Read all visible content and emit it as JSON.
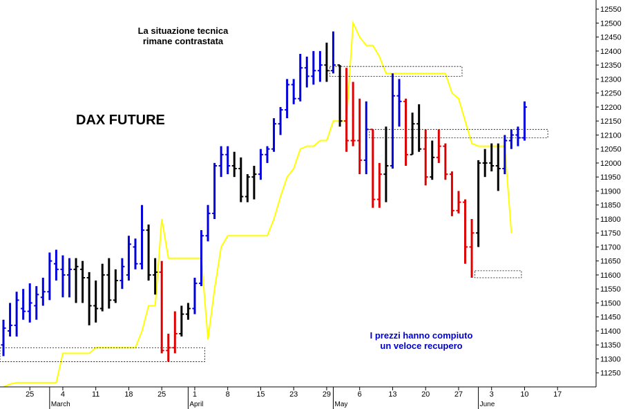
{
  "chart_data": {
    "type": "ohlc",
    "title": "DAX FUTURE",
    "annotations": [
      "La situazione tecnica\nrimane contrastata",
      "I prezzi hanno compiuto\nun veloce recupero"
    ],
    "ylim": [
      11200,
      12575
    ],
    "y_ticks": [
      11250,
      11300,
      11350,
      11400,
      11450,
      11500,
      11550,
      11600,
      11650,
      11700,
      11750,
      11800,
      11850,
      11900,
      11950,
      12000,
      12050,
      12100,
      12150,
      12200,
      12250,
      12300,
      12350,
      12400,
      12450,
      12500,
      12550
    ],
    "x_day_ticks": [
      "25",
      "4",
      "11",
      "18",
      "25",
      "1",
      "8",
      "15",
      "23",
      "29",
      "6",
      "13",
      "20",
      "27",
      "3",
      "10",
      "17"
    ],
    "x_month_labels": [
      "March",
      "April",
      "May",
      "June"
    ],
    "grid": false,
    "colors": {
      "up": "#0000dd",
      "down": "#dd0000",
      "neutral": "#000000",
      "line": "#ffff00",
      "box": "#000000"
    },
    "bars": [
      {
        "o": 11350,
        "h": 11440,
        "l": 11310,
        "c": 11410,
        "color": "blue"
      },
      {
        "o": 11400,
        "h": 11500,
        "l": 11380,
        "c": 11420,
        "color": "blue"
      },
      {
        "o": 11420,
        "h": 11540,
        "l": 11380,
        "c": 11510,
        "color": "blue"
      },
      {
        "o": 11480,
        "h": 11550,
        "l": 11440,
        "c": 11470,
        "color": "blue"
      },
      {
        "o": 11470,
        "h": 11570,
        "l": 11430,
        "c": 11500,
        "color": "blue"
      },
      {
        "o": 11490,
        "h": 11560,
        "l": 11440,
        "c": 11530,
        "color": "blue"
      },
      {
        "o": 11520,
        "h": 11590,
        "l": 11490,
        "c": 11540,
        "color": "blue"
      },
      {
        "o": 11540,
        "h": 11680,
        "l": 11510,
        "c": 11650,
        "color": "blue"
      },
      {
        "o": 11640,
        "h": 11690,
        "l": 11580,
        "c": 11620,
        "color": "blue"
      },
      {
        "o": 11620,
        "h": 11670,
        "l": 11520,
        "c": 11600,
        "color": "blue"
      },
      {
        "o": 11600,
        "h": 11660,
        "l": 11520,
        "c": 11620,
        "color": "blue"
      },
      {
        "o": 11620,
        "h": 11660,
        "l": 11500,
        "c": 11630,
        "color": "black"
      },
      {
        "o": 11620,
        "h": 11650,
        "l": 11500,
        "c": 11590,
        "color": "black"
      },
      {
        "o": 11590,
        "h": 11610,
        "l": 11420,
        "c": 11490,
        "color": "black"
      },
      {
        "o": 11490,
        "h": 11580,
        "l": 11430,
        "c": 11480,
        "color": "black"
      },
      {
        "o": 11480,
        "h": 11640,
        "l": 11470,
        "c": 11600,
        "color": "black"
      },
      {
        "o": 11600,
        "h": 11660,
        "l": 11480,
        "c": 11510,
        "color": "black"
      },
      {
        "o": 11510,
        "h": 11620,
        "l": 11500,
        "c": 11580,
        "color": "black"
      },
      {
        "o": 11580,
        "h": 11660,
        "l": 11550,
        "c": 11630,
        "color": "blue"
      },
      {
        "o": 11600,
        "h": 11740,
        "l": 11580,
        "c": 11710,
        "color": "blue"
      },
      {
        "o": 11700,
        "h": 11730,
        "l": 11620,
        "c": 11640,
        "color": "blue"
      },
      {
        "o": 11640,
        "h": 11850,
        "l": 11620,
        "c": 11760,
        "color": "blue"
      },
      {
        "o": 11760,
        "h": 11780,
        "l": 11580,
        "c": 11600,
        "color": "black"
      },
      {
        "o": 11600,
        "h": 11660,
        "l": 11530,
        "c": 11610,
        "color": "black"
      },
      {
        "o": 11610,
        "h": 11650,
        "l": 11320,
        "c": 11330,
        "color": "red"
      },
      {
        "o": 11330,
        "h": 11390,
        "l": 11290,
        "c": 11340,
        "color": "red"
      },
      {
        "o": 11340,
        "h": 11470,
        "l": 11320,
        "c": 11390,
        "color": "red"
      },
      {
        "o": 11390,
        "h": 11490,
        "l": 11380,
        "c": 11460,
        "color": "black"
      },
      {
        "o": 11460,
        "h": 11500,
        "l": 11440,
        "c": 11480,
        "color": "black"
      },
      {
        "o": 11480,
        "h": 11590,
        "l": 11460,
        "c": 11570,
        "color": "blue"
      },
      {
        "o": 11570,
        "h": 11760,
        "l": 11560,
        "c": 11740,
        "color": "blue"
      },
      {
        "o": 11740,
        "h": 11850,
        "l": 11720,
        "c": 11820,
        "color": "blue"
      },
      {
        "o": 11820,
        "h": 12000,
        "l": 11800,
        "c": 11990,
        "color": "blue"
      },
      {
        "o": 11990,
        "h": 12060,
        "l": 11950,
        "c": 12030,
        "color": "blue"
      },
      {
        "o": 12030,
        "h": 12060,
        "l": 11960,
        "c": 11990,
        "color": "blue"
      },
      {
        "o": 11990,
        "h": 12040,
        "l": 11950,
        "c": 11980,
        "color": "black"
      },
      {
        "o": 11980,
        "h": 12020,
        "l": 11860,
        "c": 11880,
        "color": "black"
      },
      {
        "o": 11880,
        "h": 11960,
        "l": 11860,
        "c": 11950,
        "color": "black"
      },
      {
        "o": 11950,
        "h": 11990,
        "l": 11870,
        "c": 11960,
        "color": "black"
      },
      {
        "o": 11960,
        "h": 12050,
        "l": 11940,
        "c": 12030,
        "color": "blue"
      },
      {
        "o": 12030,
        "h": 12060,
        "l": 12000,
        "c": 12050,
        "color": "blue"
      },
      {
        "o": 12050,
        "h": 12160,
        "l": 12040,
        "c": 12140,
        "color": "blue"
      },
      {
        "o": 12140,
        "h": 12200,
        "l": 12100,
        "c": 12190,
        "color": "blue"
      },
      {
        "o": 12190,
        "h": 12300,
        "l": 12160,
        "c": 12280,
        "color": "blue"
      },
      {
        "o": 12280,
        "h": 12300,
        "l": 12210,
        "c": 12230,
        "color": "blue"
      },
      {
        "o": 12230,
        "h": 12390,
        "l": 12220,
        "c": 12340,
        "color": "blue"
      },
      {
        "o": 12340,
        "h": 12380,
        "l": 12270,
        "c": 12310,
        "color": "blue"
      },
      {
        "o": 12310,
        "h": 12400,
        "l": 12280,
        "c": 12330,
        "color": "blue"
      },
      {
        "o": 12330,
        "h": 12400,
        "l": 12290,
        "c": 12350,
        "color": "blue"
      },
      {
        "o": 12350,
        "h": 12430,
        "l": 12290,
        "c": 12330,
        "color": "black"
      },
      {
        "o": 12330,
        "h": 12470,
        "l": 12320,
        "c": 12350,
        "color": "blue"
      },
      {
        "o": 12350,
        "h": 12350,
        "l": 12130,
        "c": 12150,
        "color": "black"
      },
      {
        "o": 12150,
        "h": 12340,
        "l": 12040,
        "c": 12080,
        "color": "red"
      },
      {
        "o": 12080,
        "h": 12290,
        "l": 12060,
        "c": 12080,
        "color": "red"
      },
      {
        "o": 12080,
        "h": 12230,
        "l": 11960,
        "c": 12010,
        "color": "red"
      },
      {
        "o": 12010,
        "h": 12220,
        "l": 11960,
        "c": 12120,
        "color": "blue"
      },
      {
        "o": 12120,
        "h": 12120,
        "l": 11840,
        "c": 11870,
        "color": "red"
      },
      {
        "o": 11870,
        "h": 12000,
        "l": 11840,
        "c": 11960,
        "color": "red"
      },
      {
        "o": 11960,
        "h": 12130,
        "l": 11860,
        "c": 11990,
        "color": "black"
      },
      {
        "o": 11990,
        "h": 12320,
        "l": 11980,
        "c": 12240,
        "color": "blue"
      },
      {
        "o": 12240,
        "h": 12300,
        "l": 12130,
        "c": 12220,
        "color": "blue"
      },
      {
        "o": 12220,
        "h": 12230,
        "l": 11990,
        "c": 12030,
        "color": "red"
      },
      {
        "o": 12030,
        "h": 12180,
        "l": 12030,
        "c": 12140,
        "color": "black"
      },
      {
        "o": 12140,
        "h": 12210,
        "l": 12040,
        "c": 12050,
        "color": "black"
      },
      {
        "o": 12050,
        "h": 12120,
        "l": 11920,
        "c": 11950,
        "color": "red"
      },
      {
        "o": 11950,
        "h": 12080,
        "l": 11940,
        "c": 12020,
        "color": "black"
      },
      {
        "o": 12020,
        "h": 12120,
        "l": 12000,
        "c": 12060,
        "color": "red"
      },
      {
        "o": 12060,
        "h": 12070,
        "l": 11940,
        "c": 11960,
        "color": "red"
      },
      {
        "o": 11960,
        "h": 11970,
        "l": 11810,
        "c": 11830,
        "color": "red"
      },
      {
        "o": 11830,
        "h": 11900,
        "l": 11820,
        "c": 11860,
        "color": "red"
      },
      {
        "o": 11860,
        "h": 11870,
        "l": 11640,
        "c": 11700,
        "color": "red"
      },
      {
        "o": 11700,
        "h": 11800,
        "l": 11590,
        "c": 11750,
        "color": "red"
      },
      {
        "o": 11750,
        "h": 12010,
        "l": 11700,
        "c": 12000,
        "color": "black"
      },
      {
        "o": 12000,
        "h": 12050,
        "l": 11950,
        "c": 12000,
        "color": "black"
      },
      {
        "o": 12000,
        "h": 12070,
        "l": 11970,
        "c": 11990,
        "color": "black"
      },
      {
        "o": 11990,
        "h": 12070,
        "l": 11900,
        "c": 11980,
        "color": "black"
      },
      {
        "o": 11980,
        "h": 12100,
        "l": 11960,
        "c": 12080,
        "color": "blue"
      },
      {
        "o": 12080,
        "h": 12120,
        "l": 12050,
        "c": 12100,
        "color": "blue"
      },
      {
        "o": 12100,
        "h": 12130,
        "l": 12060,
        "c": 12090,
        "color": "blue"
      },
      {
        "o": 12090,
        "h": 12220,
        "l": 12080,
        "c": 12200,
        "color": "blue"
      }
    ],
    "yellow_line": [
      [
        0,
        11200
      ],
      [
        1,
        11210
      ],
      [
        2,
        11215
      ],
      [
        3,
        11215
      ],
      [
        4,
        11215
      ],
      [
        5,
        11215
      ],
      [
        6,
        11215
      ],
      [
        7,
        11215
      ],
      [
        8,
        11215
      ],
      [
        9,
        11320
      ],
      [
        10,
        11320
      ],
      [
        11,
        11320
      ],
      [
        12,
        11320
      ],
      [
        13,
        11320
      ],
      [
        14,
        11340
      ],
      [
        15,
        11340
      ],
      [
        16,
        11340
      ],
      [
        17,
        11340
      ],
      [
        18,
        11340
      ],
      [
        19,
        11340
      ],
      [
        20,
        11340
      ],
      [
        21,
        11400
      ],
      [
        22,
        11490
      ],
      [
        23,
        11490
      ],
      [
        24,
        11800
      ],
      [
        25,
        11660
      ],
      [
        26,
        11660
      ],
      [
        27,
        11660
      ],
      [
        28,
        11660
      ],
      [
        29,
        11660
      ],
      [
        30,
        11660
      ],
      [
        31,
        11370
      ],
      [
        32,
        11550
      ],
      [
        33,
        11700
      ],
      [
        34,
        11740
      ],
      [
        35,
        11740
      ],
      [
        36,
        11740
      ],
      [
        37,
        11740
      ],
      [
        38,
        11740
      ],
      [
        39,
        11740
      ],
      [
        40,
        11740
      ],
      [
        41,
        11800
      ],
      [
        42,
        11880
      ],
      [
        43,
        11950
      ],
      [
        44,
        11980
      ],
      [
        45,
        12050
      ],
      [
        46,
        12060
      ],
      [
        47,
        12060
      ],
      [
        48,
        12080
      ],
      [
        49,
        12080
      ],
      [
        50,
        12150
      ],
      [
        51,
        12150
      ],
      [
        52,
        12150
      ],
      [
        53,
        12500
      ],
      [
        54,
        12450
      ],
      [
        55,
        12420
      ],
      [
        56,
        12420
      ],
      [
        57,
        12380
      ],
      [
        58,
        12320
      ],
      [
        59,
        12320
      ],
      [
        60,
        12320
      ],
      [
        61,
        12320
      ],
      [
        62,
        12320
      ],
      [
        63,
        12320
      ],
      [
        64,
        12320
      ],
      [
        65,
        12320
      ],
      [
        66,
        12320
      ],
      [
        67,
        12320
      ],
      [
        68,
        12250
      ],
      [
        69,
        12230
      ],
      [
        70,
        12150
      ],
      [
        71,
        12070
      ],
      [
        72,
        12060
      ],
      [
        73,
        12060
      ],
      [
        74,
        12060
      ],
      [
        75,
        12060
      ],
      [
        76,
        12060
      ],
      [
        77,
        11750
      ]
    ],
    "boxes": [
      {
        "i0": 0,
        "i1": 30,
        "hi": 11340,
        "lo": 11290
      },
      {
        "i0": 50,
        "i1": 69,
        "hi": 12345,
        "lo": 12310
      },
      {
        "i0": 56,
        "i1": 82,
        "hi": 12120,
        "lo": 12090
      },
      {
        "i0": 72,
        "i1": 78,
        "hi": 11615,
        "lo": 11590
      }
    ],
    "x_day_tick_indices": [
      4,
      9,
      14,
      19,
      24,
      29,
      34,
      39,
      44,
      49,
      54,
      59,
      64,
      69,
      74,
      79,
      84
    ],
    "x_month_indices": [
      7,
      28,
      50,
      72
    ]
  }
}
